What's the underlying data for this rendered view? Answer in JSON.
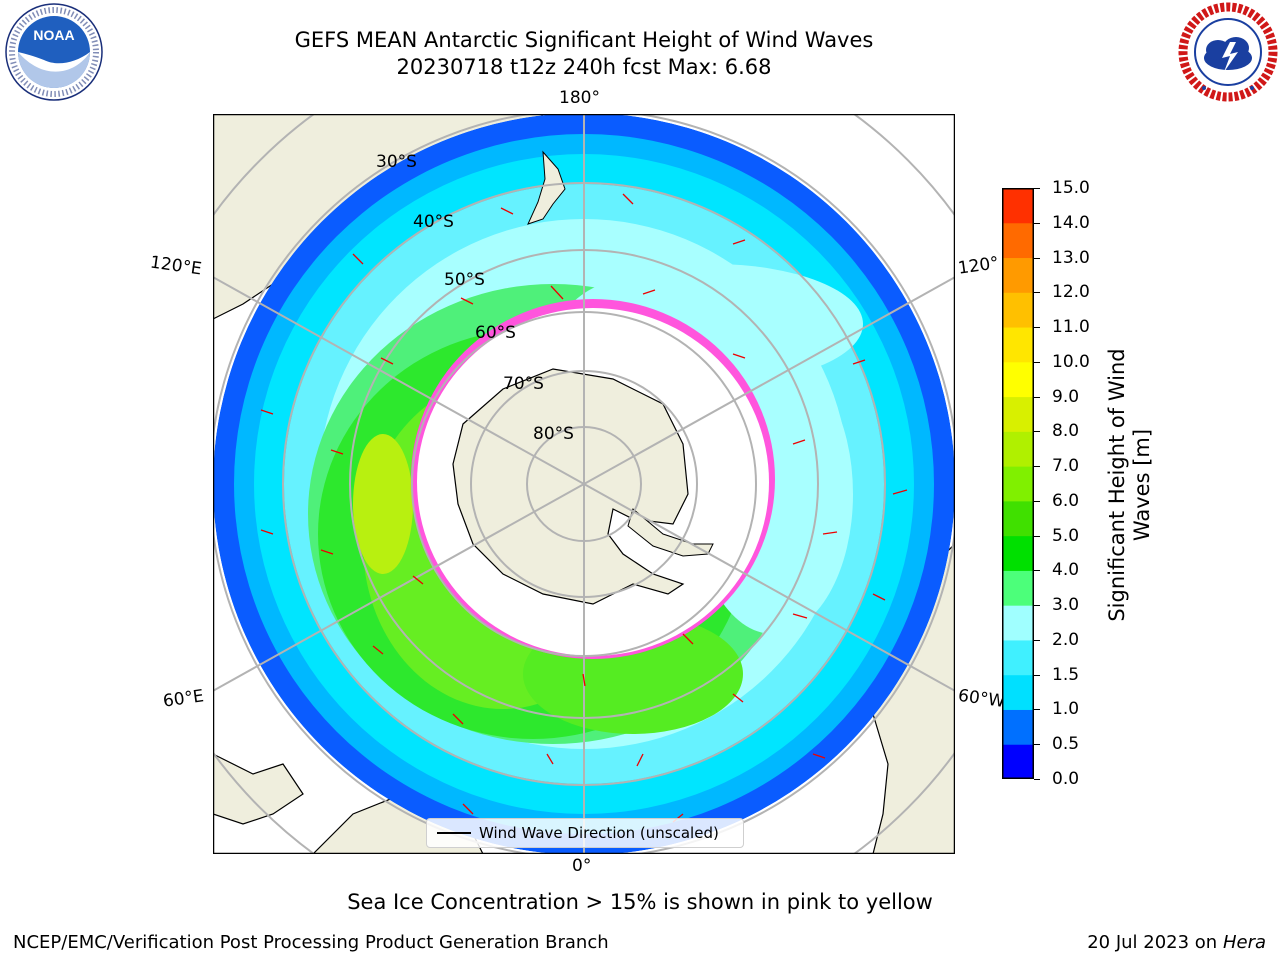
{
  "header": {
    "title_line1": "GEFS MEAN Antarctic Significant Height of Wind Waves",
    "title_line2": "20230718 t12z 240h fcst   Max: 6.68"
  },
  "logos": {
    "left": {
      "name": "noaa-logo",
      "text": "NOAA",
      "ring_text": "NATIONAL OCEANIC AND ATMOSPHERIC ADMINISTRATION · U.S. DEPARTMENT OF COMMERCE"
    },
    "right": {
      "name": "national-weather-service-logo",
      "ring_text": "NATIONAL WEATHER SERVICE"
    }
  },
  "map": {
    "projection": "south polar stereographic",
    "longitude_labels": {
      "top": "180°",
      "bottom": "0°",
      "upper_left": "120°E",
      "upper_right": "120°W",
      "lower_left": "60°E",
      "lower_right": "60°W"
    },
    "latitude_labels": [
      "30°S",
      "40°S",
      "50°S",
      "60°S",
      "70°S",
      "80°S"
    ],
    "legend_label": "Wind Wave Direction (unscaled)"
  },
  "colorbar": {
    "title": "Significant Height of Wind Waves [m]",
    "ticks": [
      "0.0",
      "0.5",
      "1.0",
      "1.5",
      "2.0",
      "3.0",
      "4.0",
      "5.0",
      "6.0",
      "7.0",
      "8.0",
      "9.0",
      "10.0",
      "11.0",
      "12.0",
      "13.0",
      "14.0",
      "15.0"
    ],
    "colors": [
      "#0000ff",
      "#0070ff",
      "#00e0ff",
      "#40f0ff",
      "#a0ffff",
      "#4cff7a",
      "#00e000",
      "#40e000",
      "#80f000",
      "#b0f000",
      "#d8f000",
      "#ffff00",
      "#ffe600",
      "#ffc000",
      "#ff9a00",
      "#ff6a00",
      "#ff3000"
    ]
  },
  "notes": {
    "sea_ice": "Sea Ice Concentration > 15% is shown in pink to yellow"
  },
  "footer": {
    "left": "NCEP/EMC/Verification Post Processing Product Generation Branch",
    "right_prefix": "20 Jul 2023 on ",
    "right_host": "Hera"
  }
}
